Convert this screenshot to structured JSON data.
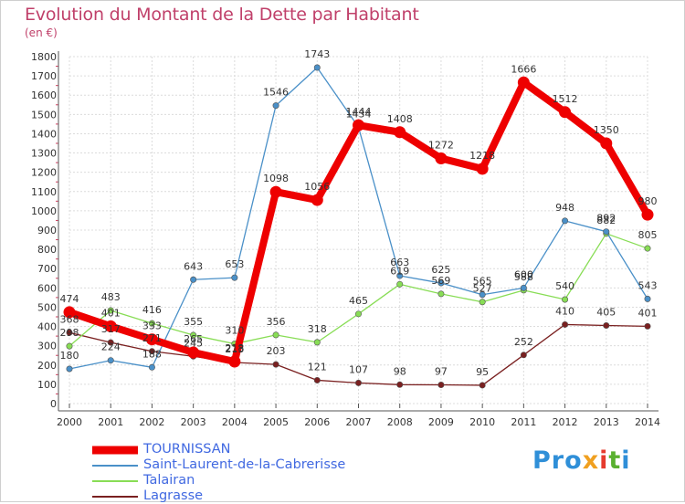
{
  "header": {
    "title": "Evolution du Montant de la Dette par Habitant",
    "unit": "(en €)"
  },
  "logo": {
    "text": "Proxiti",
    "letters": [
      {
        "ch": "P",
        "color": "#2f8fd8"
      },
      {
        "ch": "r",
        "color": "#2f8fd8"
      },
      {
        "ch": "o",
        "color": "#2f8fd8"
      },
      {
        "ch": "x",
        "color": "#f0a020"
      },
      {
        "ch": "i",
        "color": "#e63b2e"
      },
      {
        "ch": "t",
        "color": "#5ab030"
      },
      {
        "ch": "i",
        "color": "#2f8fd8"
      }
    ]
  },
  "chart_data": {
    "type": "line",
    "title": "Evolution du Montant de la Dette par Habitant",
    "ylabel": "(en €)",
    "xlabel": "",
    "ylim": [
      0,
      1800
    ],
    "yticks": [
      0,
      100,
      200,
      300,
      400,
      500,
      600,
      700,
      800,
      900,
      1000,
      1100,
      1200,
      1300,
      1400,
      1500,
      1600,
      1700,
      1800
    ],
    "grid": true,
    "legend_position": "bottom-left",
    "x": [
      "2000",
      "2001",
      "2002",
      "2003",
      "2004",
      "2005",
      "2006",
      "2007",
      "2008",
      "2009",
      "2010",
      "2011",
      "2012",
      "2013",
      "2014"
    ],
    "series": [
      {
        "name": "TOURNISSAN",
        "color": "#ee0000",
        "values": [
          474,
          401,
          333,
          265,
          218,
          1098,
          1056,
          1444,
          1408,
          1272,
          1218,
          1666,
          1512,
          1350,
          980
        ]
      },
      {
        "name": "Saint-Laurent-de-la-Cabrerisse",
        "color": "#4a90c8",
        "values": [
          180,
          224,
          188,
          643,
          653,
          1546,
          1743,
          1434,
          663,
          625,
          565,
          600,
          948,
          892,
          543
        ]
      },
      {
        "name": "Talairan",
        "color": "#88dd55",
        "values": [
          298,
          483,
          416,
          355,
          310,
          356,
          318,
          465,
          619,
          569,
          527,
          588,
          540,
          882,
          805
        ]
      },
      {
        "name": "Lagrasse",
        "color": "#7a2020",
        "values": [
          368,
          317,
          271,
          245,
          213,
          203,
          121,
          107,
          98,
          97,
          95,
          252,
          410,
          405,
          401
        ]
      }
    ]
  }
}
